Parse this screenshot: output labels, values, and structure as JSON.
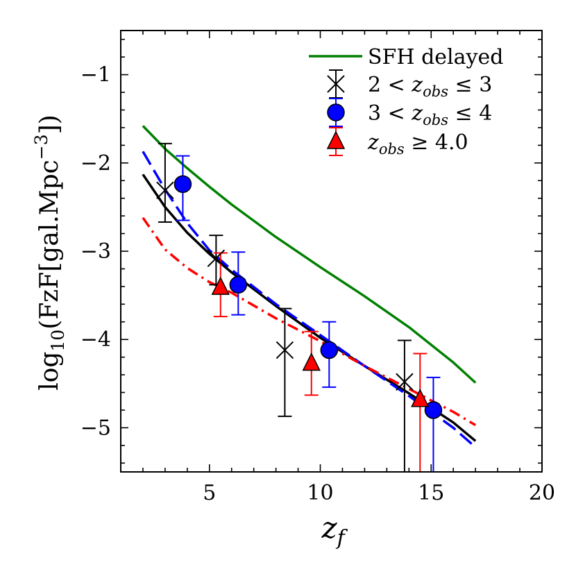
{
  "chart_data": {
    "type": "scatter",
    "xlabel": "z_f",
    "ylabel": "log10(FzF[gal.Mpc^-3])",
    "xlim": [
      1,
      20
    ],
    "ylim": [
      -5.5,
      -0.5
    ],
    "xticks": [
      5,
      10,
      15,
      20
    ],
    "yticks": [
      -1,
      -2,
      -3,
      -4,
      -5
    ],
    "xtick_labels": [
      "5",
      "10",
      "15",
      "20"
    ],
    "ytick_labels": [
      "−1",
      "−2",
      "−3",
      "−4",
      "−5"
    ],
    "legend_position": "top-right",
    "legend": [
      {
        "text": "SFH delayed",
        "kind": "line",
        "color": "#008000"
      },
      {
        "pre": "2 < ",
        "var": "z",
        "sub": "obs",
        "post": " ≤ 3",
        "kind": "x",
        "color": "#000000"
      },
      {
        "pre": "3 < ",
        "var": "z",
        "sub": "obs",
        "post": " ≤ 4",
        "kind": "circle",
        "color": "#0000ff"
      },
      {
        "pre": "",
        "var": "z",
        "sub": "obs",
        "post": " ≥ 4.0",
        "kind": "triangle",
        "color": "#ff0000"
      }
    ],
    "lines": [
      {
        "style": "solid",
        "color": "#008000",
        "x": [
          2,
          3,
          4,
          5,
          6,
          8,
          10,
          12,
          14,
          16,
          17
        ],
        "y": [
          -1.58,
          -1.84,
          -2.06,
          -2.27,
          -2.47,
          -2.84,
          -3.18,
          -3.51,
          -3.86,
          -4.26,
          -4.49
        ]
      },
      {
        "style": "solid",
        "color": "#000000",
        "x": [
          2,
          3,
          4,
          5,
          6,
          8,
          10,
          12,
          14,
          16,
          17
        ],
        "y": [
          -2.13,
          -2.5,
          -2.79,
          -3.03,
          -3.24,
          -3.62,
          -3.98,
          -4.3,
          -4.61,
          -4.94,
          -5.15
        ]
      },
      {
        "style": "dashed",
        "color": "#0000ff",
        "x": [
          2,
          3,
          4,
          5,
          6,
          8,
          10,
          12,
          14,
          16,
          17
        ],
        "y": [
          -1.87,
          -2.3,
          -2.68,
          -2.99,
          -3.21,
          -3.6,
          -3.95,
          -4.3,
          -4.64,
          -5.0,
          -5.22
        ]
      },
      {
        "style": "dashdot",
        "color": "#ff0000",
        "x": [
          2,
          3,
          4,
          5,
          6,
          8,
          10,
          12,
          14,
          16,
          17
        ],
        "y": [
          -2.62,
          -2.98,
          -3.19,
          -3.35,
          -3.47,
          -3.76,
          -4.02,
          -4.3,
          -4.56,
          -4.82,
          -4.97
        ]
      }
    ],
    "series": [
      {
        "marker": "x",
        "color": "#000000",
        "x": [
          3.0,
          5.3,
          8.4,
          13.8
        ],
        "y": [
          -2.31,
          -3.08,
          -4.12,
          -4.48
        ],
        "yerr_low": [
          -2.67,
          -3.38,
          -4.87,
          -5.5
        ],
        "yerr_high": [
          -1.78,
          -2.82,
          -3.65,
          -4.01
        ]
      },
      {
        "marker": "circle",
        "color": "#0000ff",
        "x": [
          3.8,
          6.3,
          10.4,
          15.1
        ],
        "y": [
          -2.24,
          -3.38,
          -4.12,
          -4.8
        ],
        "yerr_low": [
          -2.65,
          -3.72,
          -4.54,
          -5.5
        ],
        "yerr_high": [
          -1.92,
          -3.01,
          -3.8,
          -4.43
        ]
      },
      {
        "marker": "triangle",
        "color": "#ff0000",
        "x": [
          5.5,
          9.6,
          14.5
        ],
        "y": [
          -3.41,
          -4.27,
          -4.68
        ],
        "yerr_low": [
          -3.74,
          -4.63,
          -5.5
        ],
        "yerr_high": [
          -3.02,
          -3.91,
          -4.16
        ]
      }
    ]
  }
}
